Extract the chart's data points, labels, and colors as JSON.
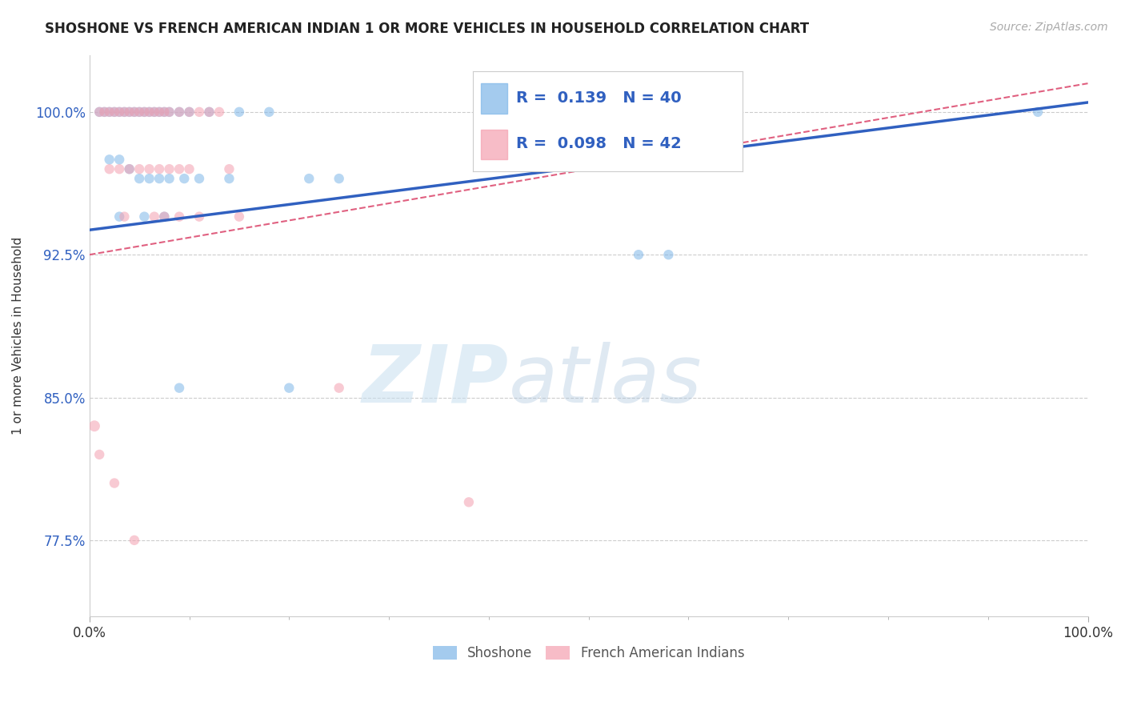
{
  "title": "SHOSHONE VS FRENCH AMERICAN INDIAN 1 OR MORE VEHICLES IN HOUSEHOLD CORRELATION CHART",
  "source": "Source: ZipAtlas.com",
  "ylabel": "1 or more Vehicles in Household",
  "xmin": 0.0,
  "xmax": 100.0,
  "ymin": 73.5,
  "ymax": 103.0,
  "yticks": [
    77.5,
    85.0,
    92.5,
    100.0
  ],
  "xticks": [
    0.0,
    100.0
  ],
  "xticklabels": [
    "0.0%",
    "100.0%"
  ],
  "yticklabels": [
    "77.5%",
    "85.0%",
    "92.5%",
    "100.0%"
  ],
  "r_shoshone": 0.139,
  "n_shoshone": 40,
  "r_french": 0.098,
  "n_french": 42,
  "shoshone_color": "#7EB6E8",
  "french_color": "#F4A0B0",
  "shoshone_line_color": "#3060C0",
  "french_line_color": "#E06080",
  "legend_label_shoshone": "Shoshone",
  "legend_label_french": "French American Indians",
  "shoshone_x": [
    1.0,
    1.5,
    2.0,
    2.5,
    3.0,
    3.5,
    4.0,
    4.5,
    5.0,
    5.5,
    6.0,
    6.5,
    7.0,
    7.5,
    8.0,
    9.0,
    10.0,
    12.0,
    15.0,
    18.0,
    2.0,
    3.0,
    4.0,
    5.0,
    6.0,
    7.0,
    8.0,
    9.5,
    11.0,
    14.0,
    22.0,
    25.0,
    55.0,
    58.0,
    3.0,
    5.5,
    7.5,
    9.0,
    20.0,
    95.0
  ],
  "shoshone_y": [
    100.0,
    100.0,
    100.0,
    100.0,
    100.0,
    100.0,
    100.0,
    100.0,
    100.0,
    100.0,
    100.0,
    100.0,
    100.0,
    100.0,
    100.0,
    100.0,
    100.0,
    100.0,
    100.0,
    100.0,
    97.5,
    97.5,
    97.0,
    96.5,
    96.5,
    96.5,
    96.5,
    96.5,
    96.5,
    96.5,
    96.5,
    96.5,
    92.5,
    92.5,
    94.5,
    94.5,
    94.5,
    85.5,
    85.5,
    100.0
  ],
  "shoshone_size": [
    80,
    80,
    80,
    80,
    80,
    80,
    80,
    80,
    80,
    80,
    80,
    80,
    80,
    80,
    80,
    80,
    80,
    80,
    80,
    80,
    80,
    80,
    80,
    80,
    80,
    80,
    80,
    80,
    80,
    80,
    80,
    80,
    80,
    80,
    80,
    80,
    80,
    80,
    80,
    80
  ],
  "french_x": [
    1.0,
    1.5,
    2.0,
    2.5,
    3.0,
    3.5,
    4.0,
    4.5,
    5.0,
    5.5,
    6.0,
    6.5,
    7.0,
    7.5,
    8.0,
    9.0,
    10.0,
    11.0,
    12.0,
    13.0,
    2.0,
    3.0,
    4.0,
    5.0,
    6.0,
    7.0,
    8.0,
    9.0,
    10.0,
    14.0,
    3.5,
    6.5,
    7.5,
    9.0,
    11.0,
    15.0,
    25.0,
    38.0,
    0.5,
    1.0,
    2.5,
    4.5
  ],
  "french_y": [
    100.0,
    100.0,
    100.0,
    100.0,
    100.0,
    100.0,
    100.0,
    100.0,
    100.0,
    100.0,
    100.0,
    100.0,
    100.0,
    100.0,
    100.0,
    100.0,
    100.0,
    100.0,
    100.0,
    100.0,
    97.0,
    97.0,
    97.0,
    97.0,
    97.0,
    97.0,
    97.0,
    97.0,
    97.0,
    97.0,
    94.5,
    94.5,
    94.5,
    94.5,
    94.5,
    94.5,
    85.5,
    79.5,
    83.5,
    82.0,
    80.5,
    77.5
  ],
  "french_size": [
    80,
    80,
    80,
    80,
    80,
    80,
    80,
    80,
    80,
    80,
    80,
    80,
    80,
    80,
    80,
    80,
    80,
    80,
    80,
    80,
    80,
    80,
    80,
    80,
    80,
    80,
    80,
    80,
    80,
    80,
    80,
    80,
    80,
    80,
    80,
    80,
    80,
    80,
    100,
    80,
    80,
    80
  ],
  "shoshone_trend_x": [
    0.0,
    100.0
  ],
  "shoshone_trend_y": [
    93.8,
    100.5
  ],
  "french_trend_x": [
    0.0,
    100.0
  ],
  "french_trend_y": [
    92.5,
    101.5
  ],
  "watermark_zip": "ZIP",
  "watermark_atlas": "atlas",
  "background_color": "#ffffff",
  "grid_color": "#cccccc"
}
